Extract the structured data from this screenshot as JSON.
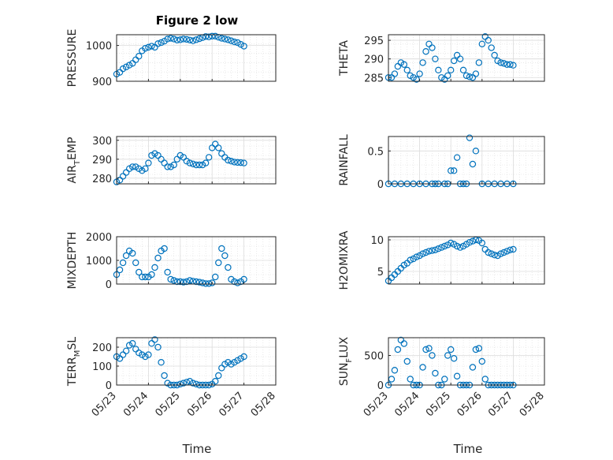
{
  "figure": {
    "title": "Figure 2 low"
  },
  "colors": {
    "marker": "#0072BD",
    "axis": "#262626",
    "grid": "#DCDCDC"
  },
  "chart_data": [
    {
      "type": "scatter",
      "title": "Figure 2 low",
      "ylabel": "PRESSURE",
      "xlabel": "",
      "xlim": [
        0,
        5
      ],
      "ylim": [
        900,
        1030
      ],
      "yticks": [
        900,
        1000
      ],
      "xtick_labels": [
        "05/23",
        "05/24",
        "05/25",
        "05/26",
        "05/27",
        "05/28"
      ],
      "grid": true,
      "x": [
        0.0,
        0.1,
        0.2,
        0.3,
        0.4,
        0.5,
        0.6,
        0.7,
        0.8,
        0.9,
        1.0,
        1.1,
        1.2,
        1.3,
        1.4,
        1.5,
        1.6,
        1.7,
        1.8,
        1.9,
        2.0,
        2.1,
        2.2,
        2.3,
        2.4,
        2.5,
        2.6,
        2.7,
        2.8,
        2.9,
        3.0,
        3.1,
        3.2,
        3.3,
        3.4,
        3.5,
        3.6,
        3.7,
        3.8,
        3.9,
        4.0
      ],
      "y": [
        920,
        925,
        935,
        940,
        945,
        950,
        960,
        970,
        985,
        992,
        995,
        998,
        995,
        1005,
        1008,
        1012,
        1018,
        1020,
        1018,
        1015,
        1016,
        1018,
        1017,
        1015,
        1013,
        1016,
        1019,
        1022,
        1025,
        1024,
        1026,
        1026,
        1023,
        1020,
        1018,
        1016,
        1013,
        1010,
        1008,
        1003,
        998
      ]
    },
    {
      "type": "scatter",
      "ylabel": "THETA",
      "xlim": [
        0,
        5
      ],
      "ylim": [
        284,
        296.5
      ],
      "yticks": [
        285,
        290,
        295
      ],
      "xtick_labels": [
        "05/23",
        "05/24",
        "05/25",
        "05/26",
        "05/27",
        "05/28"
      ],
      "grid": true,
      "x": [
        0.0,
        0.1,
        0.2,
        0.3,
        0.4,
        0.5,
        0.6,
        0.7,
        0.8,
        0.9,
        1.0,
        1.1,
        1.2,
        1.3,
        1.4,
        1.5,
        1.6,
        1.7,
        1.8,
        1.9,
        2.0,
        2.1,
        2.2,
        2.3,
        2.4,
        2.5,
        2.6,
        2.7,
        2.8,
        2.9,
        3.0,
        3.1,
        3.2,
        3.3,
        3.4,
        3.5,
        3.6,
        3.7,
        3.8,
        3.9,
        4.0
      ],
      "y": [
        285,
        285,
        286,
        288,
        289,
        288.5,
        287,
        285.5,
        285,
        284.5,
        286,
        289,
        292,
        294,
        293,
        290,
        287,
        285,
        284.5,
        285.5,
        287,
        289.5,
        291,
        290,
        287,
        285.5,
        285.2,
        285,
        286,
        289,
        294,
        296,
        295,
        293,
        291,
        289.5,
        289,
        288.8,
        288.5,
        288.5,
        288.3
      ]
    },
    {
      "type": "scatter",
      "ylabel": "AIR_TEMP",
      "xlim": [
        0,
        5
      ],
      "ylim": [
        277,
        302
      ],
      "yticks": [
        280,
        290,
        300
      ],
      "xtick_labels": [
        "05/23",
        "05/24",
        "05/25",
        "05/26",
        "05/27",
        "05/28"
      ],
      "grid": true,
      "x": [
        0.0,
        0.1,
        0.2,
        0.3,
        0.4,
        0.5,
        0.6,
        0.7,
        0.8,
        0.9,
        1.0,
        1.1,
        1.2,
        1.3,
        1.4,
        1.5,
        1.6,
        1.7,
        1.8,
        1.9,
        2.0,
        2.1,
        2.2,
        2.3,
        2.4,
        2.5,
        2.6,
        2.7,
        2.8,
        2.9,
        3.0,
        3.1,
        3.2,
        3.3,
        3.4,
        3.5,
        3.6,
        3.7,
        3.8,
        3.9,
        4.0
      ],
      "y": [
        278,
        279,
        281,
        283,
        285,
        286,
        286,
        285,
        284,
        285,
        288,
        292,
        293,
        292,
        290,
        288,
        286,
        286,
        287,
        290,
        292,
        291,
        289,
        288,
        287.5,
        287,
        287,
        287,
        288,
        291,
        296,
        298,
        296,
        293,
        291,
        289.5,
        289,
        288.5,
        288.3,
        288.2,
        288
      ]
    },
    {
      "type": "scatter",
      "ylabel": "RAINFALL",
      "xlim": [
        0,
        5
      ],
      "ylim": [
        0,
        0.72
      ],
      "yticks": [
        0,
        0.5
      ],
      "xtick_labels": [
        "05/23",
        "05/24",
        "05/25",
        "05/26",
        "05/27",
        "05/28"
      ],
      "grid": true,
      "x": [
        0.0,
        0.2,
        0.4,
        0.6,
        0.8,
        1.0,
        1.2,
        1.4,
        1.5,
        1.6,
        1.8,
        1.9,
        2.0,
        2.1,
        2.2,
        2.3,
        2.4,
        2.5,
        2.6,
        2.7,
        2.8,
        3.0,
        3.2,
        3.4,
        3.6,
        3.8,
        4.0
      ],
      "y": [
        0,
        0,
        0,
        0,
        0,
        0,
        0,
        0,
        0,
        0,
        0,
        0,
        0.2,
        0.2,
        0.4,
        0,
        0,
        0,
        0.7,
        0.3,
        0.5,
        0,
        0,
        0,
        0,
        0,
        0
      ]
    },
    {
      "type": "scatter",
      "ylabel": "MIXDEPTH",
      "xlim": [
        0,
        5
      ],
      "ylim": [
        0,
        2000
      ],
      "yticks": [
        0,
        1000,
        2000
      ],
      "xtick_labels": [
        "05/23",
        "05/24",
        "05/25",
        "05/26",
        "05/27",
        "05/28"
      ],
      "grid": true,
      "x": [
        0.0,
        0.1,
        0.2,
        0.3,
        0.4,
        0.5,
        0.6,
        0.7,
        0.8,
        0.9,
        1.0,
        1.1,
        1.2,
        1.3,
        1.4,
        1.5,
        1.6,
        1.7,
        1.8,
        1.9,
        2.0,
        2.1,
        2.2,
        2.3,
        2.4,
        2.5,
        2.6,
        2.7,
        2.8,
        2.9,
        3.0,
        3.1,
        3.2,
        3.3,
        3.4,
        3.5,
        3.6,
        3.7,
        3.8,
        3.9,
        4.0
      ],
      "y": [
        400,
        600,
        900,
        1200,
        1400,
        1300,
        900,
        500,
        300,
        300,
        300,
        400,
        700,
        1100,
        1400,
        1500,
        500,
        200,
        150,
        100,
        100,
        80,
        100,
        150,
        120,
        100,
        80,
        50,
        20,
        20,
        50,
        300,
        900,
        1500,
        1200,
        700,
        200,
        100,
        50,
        100,
        200
      ]
    },
    {
      "type": "scatter",
      "ylabel": "H2OMIXRA",
      "xlim": [
        0,
        5
      ],
      "ylim": [
        3,
        10.5
      ],
      "yticks": [
        5,
        10
      ],
      "xtick_labels": [
        "05/23",
        "05/24",
        "05/25",
        "05/26",
        "05/27",
        "05/28"
      ],
      "grid": true,
      "x": [
        0.0,
        0.1,
        0.2,
        0.3,
        0.4,
        0.5,
        0.6,
        0.7,
        0.8,
        0.9,
        1.0,
        1.1,
        1.2,
        1.3,
        1.4,
        1.5,
        1.6,
        1.7,
        1.8,
        1.9,
        2.0,
        2.1,
        2.2,
        2.3,
        2.4,
        2.5,
        2.6,
        2.7,
        2.8,
        2.9,
        3.0,
        3.1,
        3.2,
        3.3,
        3.4,
        3.5,
        3.6,
        3.7,
        3.8,
        3.9,
        4.0
      ],
      "y": [
        3.5,
        4,
        4.5,
        5,
        5.5,
        6,
        6.3,
        6.8,
        7,
        7.3,
        7.5,
        7.8,
        8,
        8.2,
        8.3,
        8.4,
        8.6,
        8.8,
        9,
        9.2,
        9.5,
        9.3,
        9,
        8.8,
        9,
        9.3,
        9.6,
        9.8,
        10,
        9.9,
        9.5,
        8.5,
        8,
        7.8,
        7.6,
        7.5,
        7.8,
        8,
        8.2,
        8.4,
        8.5
      ]
    },
    {
      "type": "scatter",
      "ylabel": "TERR_MSL",
      "xlim": [
        0,
        5
      ],
      "ylim": [
        0,
        250
      ],
      "yticks": [
        0,
        100,
        200
      ],
      "xtick_labels": [
        "05/23",
        "05/24",
        "05/25",
        "05/26",
        "05/27",
        "05/28"
      ],
      "grid": true,
      "x": [
        0.0,
        0.1,
        0.2,
        0.3,
        0.4,
        0.5,
        0.6,
        0.7,
        0.8,
        0.9,
        1.0,
        1.1,
        1.2,
        1.3,
        1.4,
        1.5,
        1.6,
        1.7,
        1.8,
        1.9,
        2.0,
        2.1,
        2.2,
        2.3,
        2.4,
        2.5,
        2.6,
        2.7,
        2.8,
        2.9,
        3.0,
        3.1,
        3.2,
        3.3,
        3.4,
        3.5,
        3.6,
        3.7,
        3.8,
        3.9,
        4.0
      ],
      "y": [
        150,
        140,
        160,
        180,
        210,
        220,
        190,
        170,
        160,
        150,
        160,
        220,
        240,
        200,
        120,
        50,
        10,
        0,
        0,
        0,
        5,
        10,
        15,
        20,
        10,
        5,
        0,
        0,
        0,
        0,
        5,
        20,
        50,
        90,
        110,
        120,
        110,
        120,
        130,
        140,
        150
      ]
    },
    {
      "type": "scatter",
      "ylabel": "SUN_FLUX",
      "xlim": [
        0,
        5
      ],
      "ylim": [
        0,
        800
      ],
      "yticks": [
        0,
        500
      ],
      "xtick_labels": [
        "05/23",
        "05/24",
        "05/25",
        "05/26",
        "05/27",
        "05/28"
      ],
      "grid": true,
      "x": [
        0.0,
        0.1,
        0.2,
        0.3,
        0.4,
        0.5,
        0.6,
        0.7,
        0.8,
        0.9,
        1.0,
        1.1,
        1.2,
        1.3,
        1.4,
        1.5,
        1.6,
        1.7,
        1.8,
        1.9,
        2.0,
        2.1,
        2.2,
        2.3,
        2.4,
        2.5,
        2.6,
        2.7,
        2.8,
        2.9,
        3.0,
        3.1,
        3.2,
        3.3,
        3.4,
        3.5,
        3.6,
        3.7,
        3.8,
        3.9,
        4.0
      ],
      "y": [
        0,
        100,
        250,
        600,
        760,
        700,
        400,
        100,
        0,
        0,
        0,
        300,
        600,
        620,
        500,
        200,
        0,
        0,
        100,
        500,
        600,
        450,
        150,
        0,
        0,
        0,
        0,
        300,
        600,
        620,
        400,
        100,
        0,
        0,
        0,
        0,
        0,
        0,
        0,
        0,
        0
      ]
    }
  ]
}
